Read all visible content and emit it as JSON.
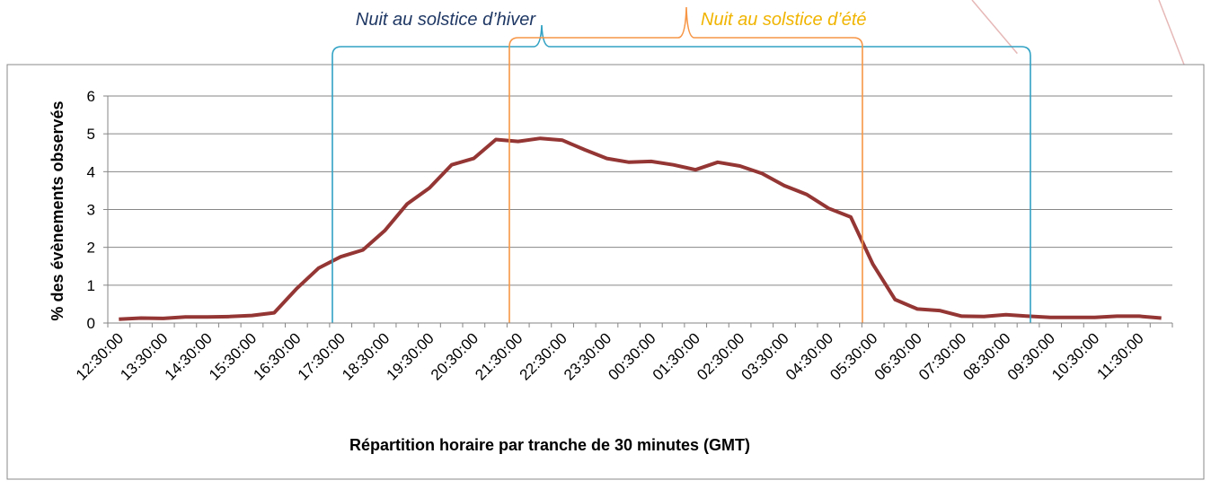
{
  "chart_data": {
    "type": "line",
    "annotations": [
      "Nuit au solstice d’hiver",
      "Nuit au solstice d’été"
    ],
    "y_label": "% des évènements observés",
    "x_label": "Répartition horaire par tranche de 30 minutes (GMT)",
    "categories": [
      "12:30:00",
      null,
      "13:30:00",
      null,
      "14:30:00",
      null,
      "15:30:00",
      null,
      "16:30:00",
      null,
      "17:30:00",
      null,
      "18:30:00",
      null,
      "19:30:00",
      null,
      "20:30:00",
      null,
      "21:30:00",
      null,
      "22:30:00",
      null,
      "23:30:00",
      null,
      "00:30:00",
      null,
      "01:30:00",
      null,
      "02:30:00",
      null,
      "03:30:00",
      null,
      "04:30:00",
      null,
      "05:30:00",
      null,
      "06:30:00",
      null,
      "07:30:00",
      null,
      "08:30:00",
      null,
      "09:30:00",
      null,
      "10:30:00",
      null,
      "11:30:00",
      null
    ],
    "series": [
      {
        "name": "% des évènements observés",
        "color": "#943634",
        "values": [
          0.1,
          0.13,
          0.12,
          0.16,
          0.16,
          0.17,
          0.2,
          0.27,
          0.9,
          1.45,
          1.75,
          1.93,
          2.45,
          3.15,
          3.57,
          4.18,
          4.35,
          4.85,
          4.8,
          4.88,
          4.83,
          4.58,
          4.35,
          4.25,
          4.27,
          4.18,
          4.05,
          4.25,
          4.15,
          3.95,
          3.63,
          3.4,
          3.03,
          2.8,
          1.55,
          0.62,
          0.37,
          0.33,
          0.18,
          0.17,
          0.22,
          0.18,
          0.15,
          0.15,
          0.15,
          0.18,
          0.18,
          0.13
        ]
      }
    ],
    "ylim": [
      0,
      6
    ],
    "yticks": [
      0,
      1,
      2,
      3,
      4,
      5,
      6
    ],
    "grid": true
  }
}
